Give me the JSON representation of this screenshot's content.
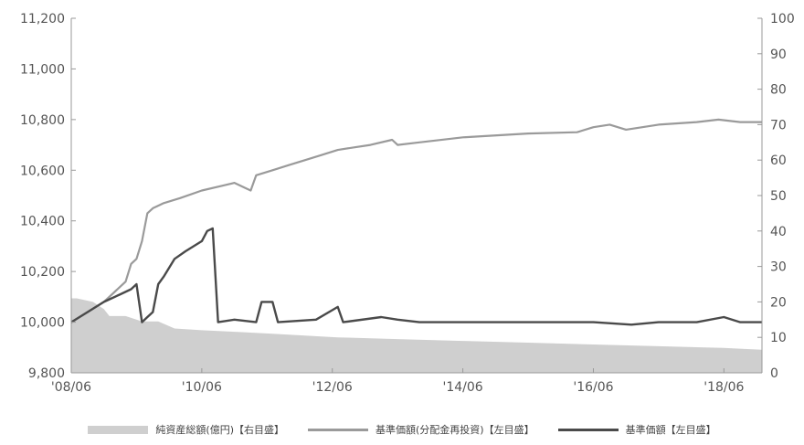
{
  "chart_data": {
    "type": "line",
    "title": "",
    "x_tick_labels": [
      "'08/06",
      "'10/06",
      "'12/06",
      "'14/06",
      "'16/06",
      "'18/06"
    ],
    "x_range": [
      "2008-06",
      "2019-01"
    ],
    "y_left": {
      "ticks": [
        "9,800",
        "10,000",
        "10,200",
        "10,400",
        "10,600",
        "10,800",
        "11,000",
        "11,200"
      ],
      "range": [
        9800,
        11200
      ]
    },
    "y_right": {
      "ticks": [
        "0",
        "10",
        "20",
        "30",
        "40",
        "50",
        "60",
        "70",
        "80",
        "90",
        "100"
      ],
      "range": [
        0,
        100
      ]
    },
    "grid": false,
    "legend_position": "bottom",
    "series": [
      {
        "name": "純資産総額(億円)【右目盛】",
        "kind": "area",
        "axis": "right",
        "color": "#cfcfcf",
        "points": [
          [
            "2008-06",
            21
          ],
          [
            "2008-07",
            21
          ],
          [
            "2008-10",
            20
          ],
          [
            "2008-12",
            18
          ],
          [
            "2009-01",
            16
          ],
          [
            "2009-04",
            16
          ],
          [
            "2009-07",
            14.5
          ],
          [
            "2009-10",
            14.5
          ],
          [
            "2010-01",
            12.5
          ],
          [
            "2010-06",
            12
          ],
          [
            "2011-01",
            11.5
          ],
          [
            "2011-07",
            11
          ],
          [
            "2012-01",
            10.5
          ],
          [
            "2012-07",
            10
          ],
          [
            "2013-06",
            9.5
          ],
          [
            "2014-06",
            9
          ],
          [
            "2015-06",
            8.5
          ],
          [
            "2016-06",
            8
          ],
          [
            "2017-06",
            7.5
          ],
          [
            "2018-06",
            7
          ],
          [
            "2019-01",
            6.5
          ]
        ]
      },
      {
        "name": "基準価額(分配金再投資)【左目盛】",
        "kind": "line",
        "axis": "left",
        "color": "#9a9a9a",
        "points": [
          [
            "2008-06",
            10000
          ],
          [
            "2008-09",
            10040
          ],
          [
            "2008-12",
            10080
          ],
          [
            "2009-04",
            10160
          ],
          [
            "2009-05",
            10230
          ],
          [
            "2009-06",
            10250
          ],
          [
            "2009-07",
            10320
          ],
          [
            "2009-08",
            10430
          ],
          [
            "2009-09",
            10450
          ],
          [
            "2009-10",
            10460
          ],
          [
            "2009-11",
            10470
          ],
          [
            "2010-02",
            10490
          ],
          [
            "2010-06",
            10520
          ],
          [
            "2010-10",
            10540
          ],
          [
            "2010-12",
            10550
          ],
          [
            "2011-02",
            10530
          ],
          [
            "2011-03",
            10520
          ],
          [
            "2011-04",
            10580
          ],
          [
            "2011-07",
            10600
          ],
          [
            "2011-10",
            10620
          ],
          [
            "2012-01",
            10640
          ],
          [
            "2012-04",
            10660
          ],
          [
            "2012-07",
            10680
          ],
          [
            "2012-10",
            10690
          ],
          [
            "2013-01",
            10700
          ],
          [
            "2013-05",
            10720
          ],
          [
            "2013-06",
            10700
          ],
          [
            "2013-10",
            10710
          ],
          [
            "2014-06",
            10730
          ],
          [
            "2015-06",
            10745
          ],
          [
            "2016-03",
            10750
          ],
          [
            "2016-06",
            10770
          ],
          [
            "2016-09",
            10780
          ],
          [
            "2016-12",
            10760
          ],
          [
            "2017-06",
            10780
          ],
          [
            "2018-01",
            10790
          ],
          [
            "2018-05",
            10800
          ],
          [
            "2018-09",
            10790
          ],
          [
            "2019-01",
            10790
          ]
        ]
      },
      {
        "name": "基準価額【左目盛】",
        "kind": "line",
        "axis": "left",
        "color": "#4a4a4a",
        "points": [
          [
            "2008-06",
            10000
          ],
          [
            "2008-09",
            10040
          ],
          [
            "2008-12",
            10080
          ],
          [
            "2009-03",
            10110
          ],
          [
            "2009-05",
            10130
          ],
          [
            "2009-06",
            10150
          ],
          [
            "2009-07",
            10000
          ],
          [
            "2009-08",
            10020
          ],
          [
            "2009-09",
            10040
          ],
          [
            "2009-10",
            10150
          ],
          [
            "2009-11",
            10180
          ],
          [
            "2010-01",
            10250
          ],
          [
            "2010-03",
            10280
          ],
          [
            "2010-06",
            10320
          ],
          [
            "2010-07",
            10360
          ],
          [
            "2010-08",
            10370
          ],
          [
            "2010-09",
            10000
          ],
          [
            "2010-12",
            10010
          ],
          [
            "2011-04",
            10000
          ],
          [
            "2011-05",
            10080
          ],
          [
            "2011-07",
            10080
          ],
          [
            "2011-08",
            10000
          ],
          [
            "2012-03",
            10010
          ],
          [
            "2012-07",
            10060
          ],
          [
            "2012-08",
            10000
          ],
          [
            "2013-03",
            10020
          ],
          [
            "2013-06",
            10010
          ],
          [
            "2013-10",
            10000
          ],
          [
            "2014-06",
            10000
          ],
          [
            "2015-06",
            10000
          ],
          [
            "2016-06",
            10000
          ],
          [
            "2017-01",
            9990
          ],
          [
            "2017-06",
            10000
          ],
          [
            "2018-01",
            10000
          ],
          [
            "2018-06",
            10020
          ],
          [
            "2018-09",
            10000
          ],
          [
            "2019-01",
            10000
          ]
        ]
      }
    ]
  }
}
